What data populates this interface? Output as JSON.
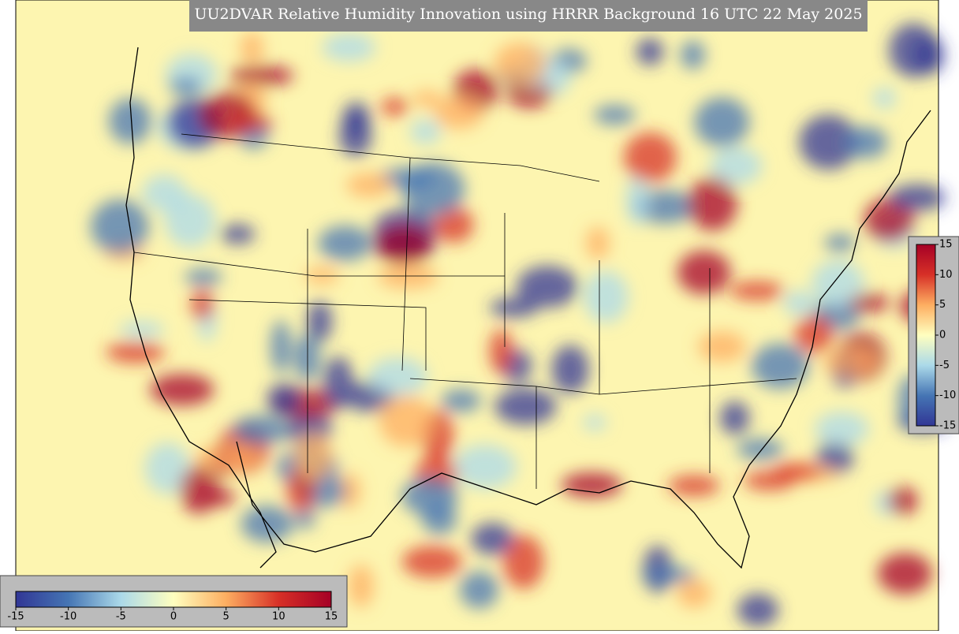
{
  "title": "UU2DVAR Relative Humidity Innovation using HRRR Background 16 UTC 22 May 2025",
  "colorbars": [
    {
      "orientation": "horizontal",
      "range": [
        -15,
        15
      ],
      "ticks": [
        -15,
        -10,
        -5,
        0,
        5,
        10,
        15
      ],
      "colors": [
        "#313695",
        "#4575b4",
        "#abd9e9",
        "#ffffbf",
        "#fdae61",
        "#d73027",
        "#a50026"
      ]
    },
    {
      "orientation": "vertical",
      "range": [
        -15,
        15
      ],
      "ticks": [
        -15,
        -10,
        -5,
        0,
        5,
        10,
        15
      ],
      "colors": [
        "#313695",
        "#4575b4",
        "#abd9e9",
        "#ffffbf",
        "#fdae61",
        "#d73027",
        "#a50026"
      ]
    }
  ]
}
